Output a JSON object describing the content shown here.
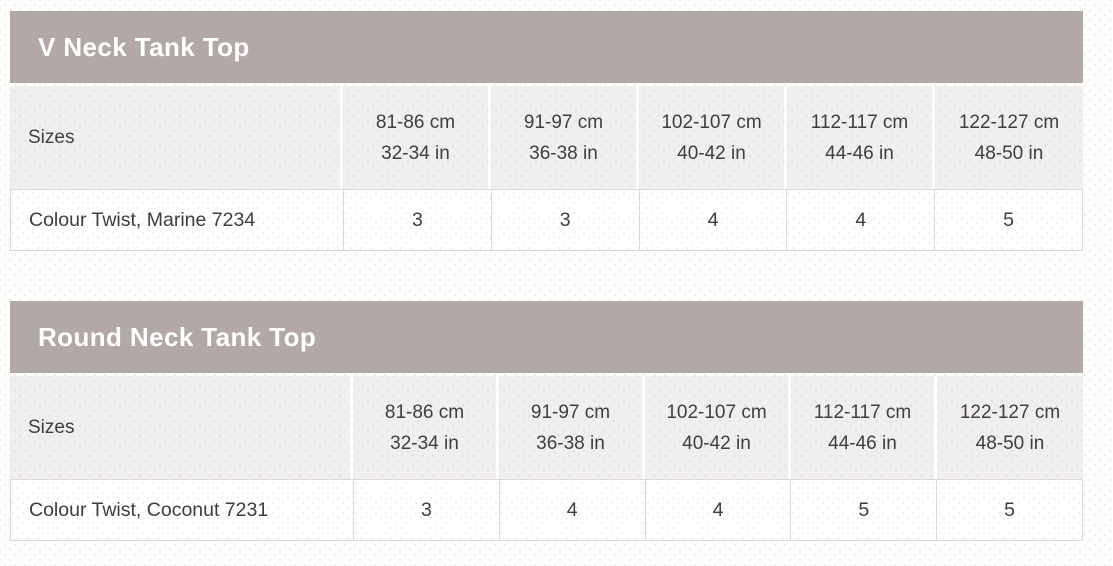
{
  "colors": {
    "title_bar_bg": "#b2a8a6",
    "title_text": "#ffffff",
    "header_cell_bg": "#f1efee",
    "data_cell_bg": "#fefefd",
    "cell_border": "#dcd8d8",
    "body_text": "#403d3e"
  },
  "tables": [
    {
      "title": "V Neck Tank Top",
      "sizes_label": "Sizes",
      "columns": [
        {
          "cm": "81-86 cm",
          "in": "32-34 in"
        },
        {
          "cm": "91-97 cm",
          "in": "36-38 in"
        },
        {
          "cm": "102-107 cm",
          "in": "40-42 in"
        },
        {
          "cm": "112-117 cm",
          "in": "44-46 in"
        },
        {
          "cm": "122-127 cm",
          "in": "48-50 in"
        }
      ],
      "rows": [
        {
          "label": "Colour Twist, Marine 7234",
          "values": [
            "3",
            "3",
            "4",
            "4",
            "5"
          ]
        }
      ]
    },
    {
      "title": "Round Neck Tank Top",
      "sizes_label": "Sizes",
      "columns": [
        {
          "cm": "81-86 cm",
          "in": "32-34 in"
        },
        {
          "cm": "91-97 cm",
          "in": "36-38 in"
        },
        {
          "cm": "102-107 cm",
          "in": "40-42 in"
        },
        {
          "cm": "112-117 cm",
          "in": "44-46 in"
        },
        {
          "cm": "122-127 cm",
          "in": "48-50 in"
        }
      ],
      "rows": [
        {
          "label": "Colour Twist, Coconut 7231",
          "values": [
            "3",
            "4",
            "4",
            "5",
            "5"
          ]
        }
      ]
    }
  ]
}
